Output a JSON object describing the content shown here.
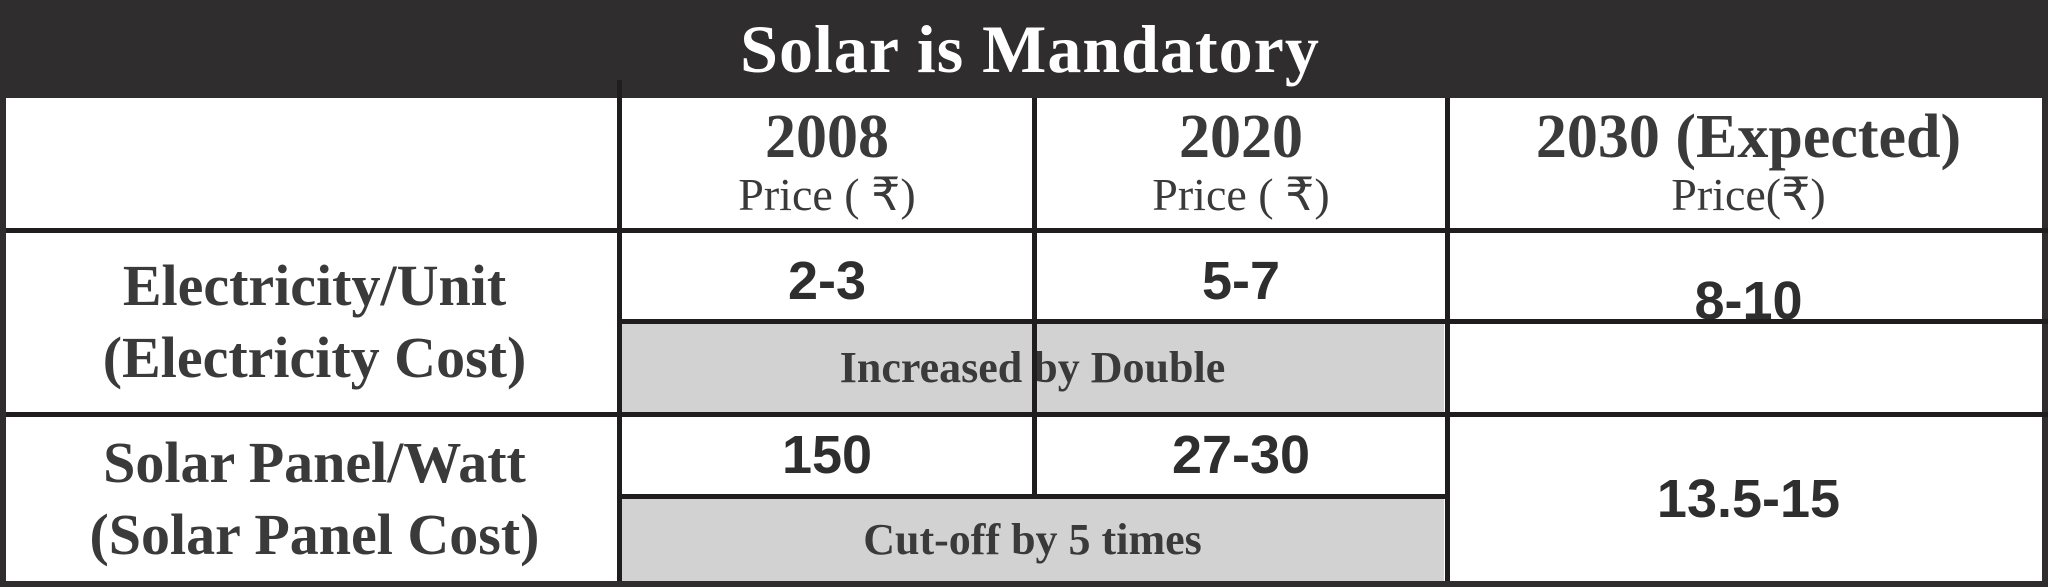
{
  "title": "Solar is Mandatory",
  "columns": [
    {
      "year": "2008",
      "price_label": "Price ( ₹)"
    },
    {
      "year": "2020",
      "price_label": "Price ( ₹)"
    },
    {
      "year": "2030 (Expected)",
      "price_label": "Price(₹)"
    }
  ],
  "rows": [
    {
      "label_line1": "Electricity/Unit",
      "label_line2": "(Electricity Cost)",
      "values": [
        "2-3",
        "5-7",
        "8-10"
      ],
      "note": "Increased by Double"
    },
    {
      "label_line1": "Solar Panel/Watt",
      "label_line2": "(Solar Panel Cost)",
      "values": [
        "150",
        "27-30",
        "13.5-15"
      ],
      "note": "Cut-off by 5 times"
    }
  ],
  "colors": {
    "title_bg": "#2f2d2e",
    "title_text": "#ffffff",
    "note_bg": "#d2d2d3",
    "text": "#3a3a3a",
    "grid": "#1f1d1e"
  }
}
